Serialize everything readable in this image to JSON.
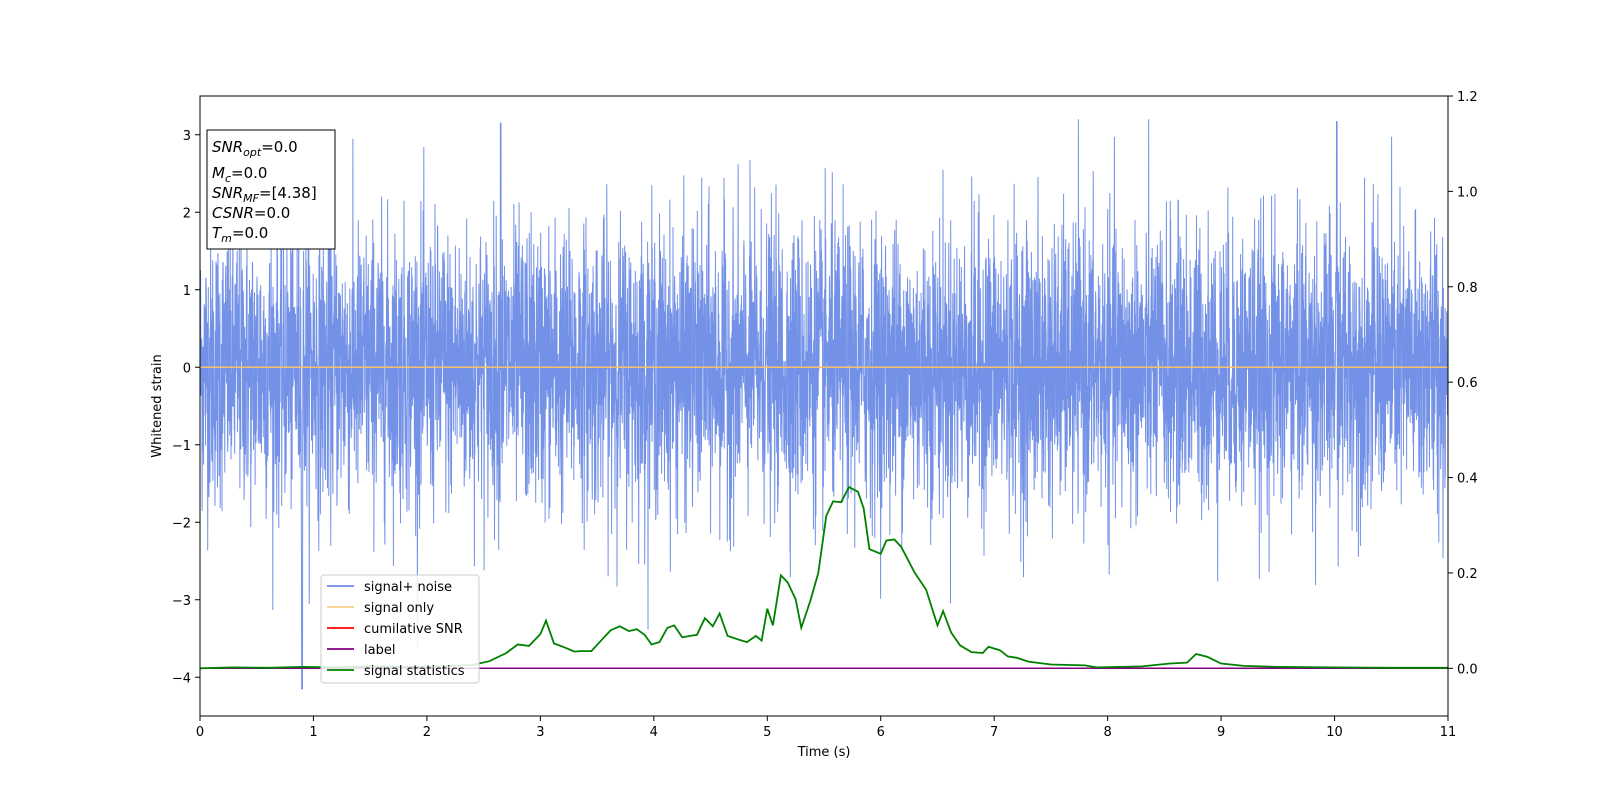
{
  "chart_data": {
    "type": "line",
    "xlabel": "Time (s)",
    "ylabel": "Whitened strain",
    "xlim": [
      0,
      11
    ],
    "ylim": [
      -4.5,
      3.5
    ],
    "y2lim": [
      -0.1,
      1.2
    ],
    "x_ticks": [
      "0",
      "1",
      "2",
      "3",
      "4",
      "5",
      "6",
      "7",
      "8",
      "9",
      "10",
      "11"
    ],
    "y_ticks": [
      "−4",
      "−3",
      "−2",
      "−1",
      "0",
      "1",
      "2",
      "3"
    ],
    "y2_ticks": [
      "0.0",
      "0.2",
      "0.4",
      "0.6",
      "0.8",
      "1.0",
      "1.2"
    ],
    "grid": false,
    "legend_position": "lower-left",
    "info_box": {
      "snr_opt": {
        "main": "SNR",
        "sub": "opt",
        "value": "=0.0"
      },
      "mc": {
        "main": "M",
        "sub": "c",
        "value": "=0.0"
      },
      "snr_mf": {
        "main": "SNR",
        "sub": "MF",
        "value": "=[4.38]"
      },
      "csnr": {
        "main": "CSNR",
        "value": "=0.0"
      },
      "tm": {
        "main": "T",
        "sub": "m",
        "value": "=0.0"
      }
    },
    "series": [
      {
        "name": "signal+ noise",
        "color": "#6b8be6",
        "axis": "left",
        "note_values": "dense noise, roughly within [-2.5, 2.5], peaks to ~3.15 and dip to ~-4.15 near t=0.9"
      },
      {
        "name": "signal only",
        "color": "#f5c26b",
        "axis": "left",
        "x": [
          0,
          11
        ],
        "values": [
          0,
          0
        ]
      },
      {
        "name": "cumilative SNR",
        "color": "#ff0000",
        "axis": "right",
        "x": [],
        "values": []
      },
      {
        "name": "label",
        "color": "#800080",
        "axis": "right",
        "x": [
          0,
          11
        ],
        "values": [
          0,
          0
        ]
      },
      {
        "name": "signal statistics",
        "color": "#008000",
        "axis": "right",
        "x": [
          0,
          0.3,
          0.6,
          0.9,
          1.2,
          1.5,
          1.8,
          2.1,
          2.4,
          2.55,
          2.7,
          2.8,
          2.9,
          3.0,
          3.05,
          3.12,
          3.2,
          3.3,
          3.35,
          3.45,
          3.55,
          3.62,
          3.7,
          3.78,
          3.85,
          3.92,
          3.98,
          4.05,
          4.12,
          4.18,
          4.25,
          4.32,
          4.38,
          4.45,
          4.52,
          4.58,
          4.65,
          4.75,
          4.82,
          4.9,
          4.95,
          5.0,
          5.05,
          5.12,
          5.18,
          5.25,
          5.3,
          5.38,
          5.45,
          5.52,
          5.58,
          5.65,
          5.72,
          5.8,
          5.85,
          5.9,
          6.0,
          6.05,
          6.12,
          6.18,
          6.3,
          6.4,
          6.5,
          6.55,
          6.62,
          6.7,
          6.8,
          6.9,
          6.95,
          7.05,
          7.12,
          7.2,
          7.3,
          7.5,
          7.8,
          7.9,
          8.3,
          8.55,
          8.7,
          8.78,
          8.88,
          9.0,
          9.2,
          9.5,
          10.0,
          10.5,
          11.0
        ],
        "values": [
          0.0,
          0.002,
          0.001,
          0.003,
          0.002,
          0.004,
          0.003,
          0.004,
          0.007,
          0.015,
          0.032,
          0.05,
          0.047,
          0.072,
          0.1,
          0.052,
          0.045,
          0.035,
          0.036,
          0.036,
          0.062,
          0.08,
          0.088,
          0.078,
          0.082,
          0.07,
          0.05,
          0.055,
          0.085,
          0.09,
          0.065,
          0.068,
          0.07,
          0.105,
          0.088,
          0.115,
          0.068,
          0.06,
          0.055,
          0.068,
          0.058,
          0.125,
          0.09,
          0.195,
          0.18,
          0.145,
          0.085,
          0.142,
          0.2,
          0.32,
          0.35,
          0.348,
          0.38,
          0.37,
          0.335,
          0.25,
          0.24,
          0.268,
          0.27,
          0.255,
          0.2,
          0.165,
          0.09,
          0.12,
          0.075,
          0.048,
          0.034,
          0.032,
          0.045,
          0.038,
          0.025,
          0.022,
          0.014,
          0.008,
          0.006,
          0.002,
          0.004,
          0.01,
          0.012,
          0.03,
          0.024,
          0.01,
          0.005,
          0.003,
          0.002,
          0.001,
          0.001
        ]
      }
    ]
  }
}
